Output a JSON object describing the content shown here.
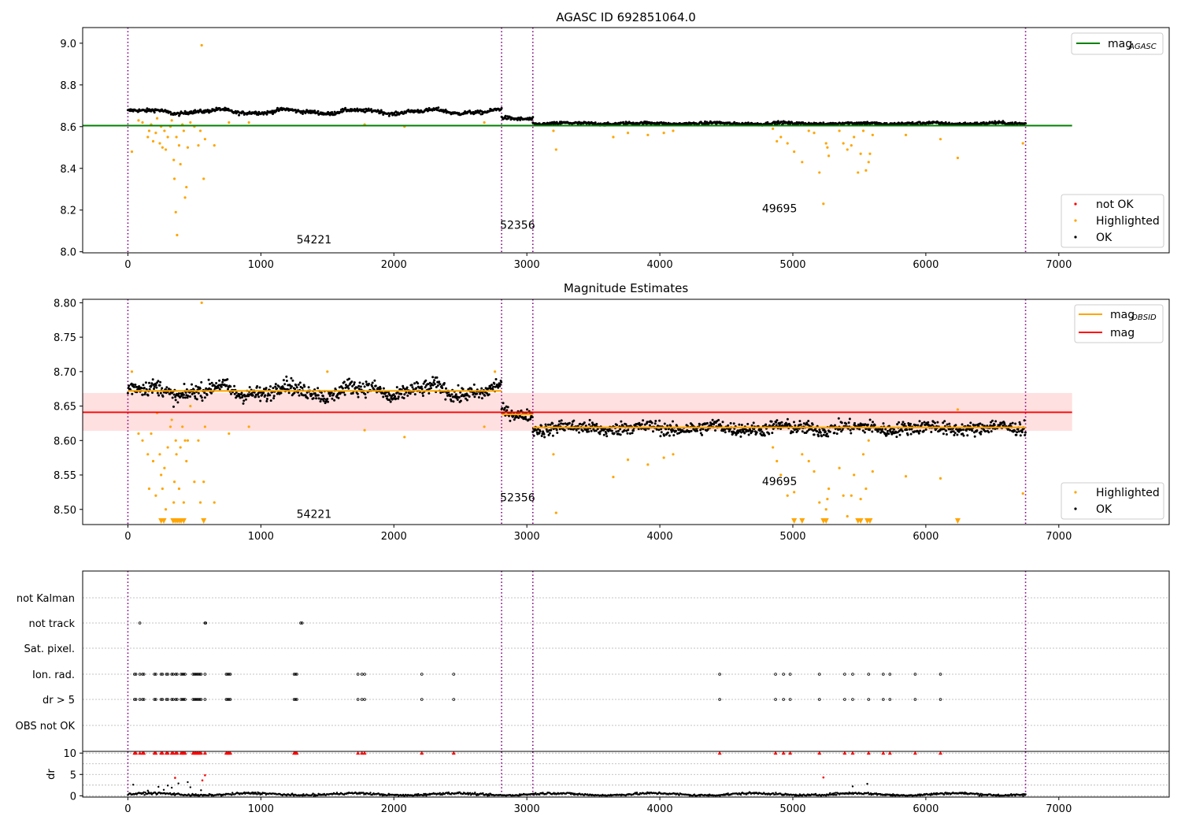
{
  "chart_data": [
    {
      "type": "scatter",
      "title": "AGASC ID 692851064.0",
      "xlim": [
        -340,
        7830
      ],
      "ylim": [
        7.995,
        9.075
      ],
      "x_ticks": [
        "0",
        "1000",
        "2000",
        "3000",
        "4000",
        "5000",
        "6000",
        "7000"
      ],
      "x_tick_values": [
        0,
        1000,
        2000,
        3000,
        4000,
        5000,
        6000,
        7000
      ],
      "y_ticks": [
        "8.0",
        "8.2",
        "8.4",
        "8.6",
        "8.8",
        "9.0"
      ],
      "y_tick_values": [
        8.0,
        8.2,
        8.4,
        8.6,
        8.8,
        9.0
      ],
      "mag_agasc": 8.605,
      "mag_agasc_xrange": [
        -340,
        7100
      ],
      "obs_boundaries": [
        0,
        2810,
        3045,
        6750
      ],
      "obs_labels": [
        {
          "text": "54221",
          "x": 1400,
          "y": 8.04
        },
        {
          "text": "52356",
          "x": 2930,
          "y": 8.11
        },
        {
          "text": "49695",
          "x": 4900,
          "y": 8.19
        }
      ],
      "segments": [
        {
          "x0": 0,
          "x1": 2810,
          "level": 8.672,
          "amp": 0.012,
          "noise": 0.006,
          "step": 5
        },
        {
          "x0": 2810,
          "x1": 3045,
          "level": 8.638,
          "amp": 0.006,
          "noise": 0.006,
          "step": 5
        },
        {
          "x0": 3045,
          "x1": 6750,
          "level": 8.615,
          "amp": 0.004,
          "noise": 0.005,
          "step": 5
        }
      ],
      "highlighted_points": [
        [
          30,
          8.48
        ],
        [
          80,
          8.63
        ],
        [
          110,
          8.62
        ],
        [
          150,
          8.55
        ],
        [
          160,
          8.58
        ],
        [
          175,
          8.61
        ],
        [
          190,
          8.53
        ],
        [
          210,
          8.57
        ],
        [
          220,
          8.64
        ],
        [
          240,
          8.52
        ],
        [
          250,
          8.6
        ],
        [
          260,
          8.5
        ],
        [
          275,
          8.58
        ],
        [
          285,
          8.49
        ],
        [
          300,
          8.55
        ],
        [
          320,
          8.6
        ],
        [
          330,
          8.63
        ],
        [
          345,
          8.44
        ],
        [
          350,
          8.35
        ],
        [
          360,
          8.19
        ],
        [
          365,
          8.55
        ],
        [
          370,
          8.08
        ],
        [
          385,
          8.51
        ],
        [
          395,
          8.42
        ],
        [
          410,
          8.61
        ],
        [
          420,
          8.58
        ],
        [
          430,
          8.26
        ],
        [
          440,
          8.31
        ],
        [
          450,
          8.5
        ],
        [
          470,
          8.62
        ],
        [
          500,
          8.6
        ],
        [
          530,
          8.51
        ],
        [
          545,
          8.58
        ],
        [
          555,
          8.99
        ],
        [
          570,
          8.35
        ],
        [
          580,
          8.54
        ],
        [
          650,
          8.51
        ],
        [
          760,
          8.62
        ],
        [
          910,
          8.62
        ],
        [
          1780,
          8.61
        ],
        [
          2080,
          8.6
        ],
        [
          2680,
          8.62
        ],
        [
          3200,
          8.58
        ],
        [
          3220,
          8.49
        ],
        [
          3650,
          8.55
        ],
        [
          3760,
          8.57
        ],
        [
          3910,
          8.56
        ],
        [
          4030,
          8.57
        ],
        [
          4100,
          8.58
        ],
        [
          4850,
          8.59
        ],
        [
          4880,
          8.53
        ],
        [
          4910,
          8.55
        ],
        [
          4960,
          8.52
        ],
        [
          5010,
          8.48
        ],
        [
          5070,
          8.43
        ],
        [
          5120,
          8.58
        ],
        [
          5160,
          8.57
        ],
        [
          5200,
          8.38
        ],
        [
          5230,
          8.23
        ],
        [
          5250,
          8.52
        ],
        [
          5260,
          8.5
        ],
        [
          5270,
          8.46
        ],
        [
          5350,
          8.58
        ],
        [
          5380,
          8.52
        ],
        [
          5410,
          8.49
        ],
        [
          5440,
          8.51
        ],
        [
          5460,
          8.55
        ],
        [
          5490,
          8.38
        ],
        [
          5510,
          8.47
        ],
        [
          5530,
          8.58
        ],
        [
          5550,
          8.39
        ],
        [
          5570,
          8.43
        ],
        [
          5580,
          8.47
        ],
        [
          5600,
          8.56
        ],
        [
          5850,
          8.56
        ],
        [
          6110,
          8.54
        ],
        [
          6240,
          8.45
        ],
        [
          6730,
          8.52
        ]
      ],
      "legend_top": [
        {
          "label": "mag",
          "sub": "AGASC",
          "color": "#008000",
          "kind": "line"
        }
      ],
      "legend_bottom": [
        {
          "label": "not OK",
          "color": "#ff0000",
          "kind": "dot"
        },
        {
          "label": "Highlighted",
          "color": "#ffa500",
          "kind": "dot"
        },
        {
          "label": "OK",
          "color": "#000000",
          "kind": "dot"
        }
      ]
    },
    {
      "type": "scatter",
      "title": "Magnitude Estimates",
      "xlim": [
        -340,
        7830
      ],
      "ylim": [
        8.478,
        8.805
      ],
      "x_ticks": [
        "0",
        "1000",
        "2000",
        "3000",
        "4000",
        "5000",
        "6000",
        "7000"
      ],
      "x_tick_values": [
        0,
        1000,
        2000,
        3000,
        4000,
        5000,
        6000,
        7000
      ],
      "y_ticks": [
        "8.50",
        "8.55",
        "8.60",
        "8.65",
        "8.70",
        "8.75",
        "8.80"
      ],
      "y_tick_values": [
        8.5,
        8.55,
        8.6,
        8.65,
        8.7,
        8.75,
        8.8
      ],
      "mag": 8.641,
      "mag_band": [
        8.614,
        8.669
      ],
      "mag_xrange": [
        -340,
        7100
      ],
      "mag_obsid": [
        {
          "x0": 0,
          "x1": 2810,
          "y": 8.672
        },
        {
          "x0": 2810,
          "x1": 3045,
          "y": 8.638
        },
        {
          "x0": 3045,
          "x1": 6750,
          "y": 8.619
        }
      ],
      "obs_boundaries": [
        0,
        2810,
        3045,
        6750
      ],
      "obs_labels": [
        {
          "text": "54221",
          "x": 1400,
          "y": 8.488
        },
        {
          "text": "52356",
          "x": 2930,
          "y": 8.512
        },
        {
          "text": "49695",
          "x": 4900,
          "y": 8.535
        }
      ],
      "segments": [
        {
          "x0": 0,
          "x1": 2810,
          "level": 8.672,
          "amp": 0.01,
          "noise": 0.008,
          "step": 4
        },
        {
          "x0": 2810,
          "x1": 3045,
          "level": 8.638,
          "amp": 0.005,
          "noise": 0.006,
          "step": 4
        },
        {
          "x0": 3045,
          "x1": 6750,
          "level": 8.618,
          "amp": 0.004,
          "noise": 0.007,
          "step": 4
        }
      ],
      "highlighted_points": [
        [
          30,
          8.7
        ],
        [
          80,
          8.61
        ],
        [
          110,
          8.6
        ],
        [
          150,
          8.58
        ],
        [
          160,
          8.53
        ],
        [
          175,
          8.61
        ],
        [
          190,
          8.57
        ],
        [
          210,
          8.52
        ],
        [
          220,
          8.64
        ],
        [
          240,
          8.58
        ],
        [
          250,
          8.55
        ],
        [
          260,
          8.53
        ],
        [
          275,
          8.56
        ],
        [
          285,
          8.5
        ],
        [
          300,
          8.59
        ],
        [
          320,
          8.62
        ],
        [
          330,
          8.63
        ],
        [
          345,
          8.51
        ],
        [
          350,
          8.54
        ],
        [
          360,
          8.6
        ],
        [
          365,
          8.58
        ],
        [
          385,
          8.53
        ],
        [
          395,
          8.59
        ],
        [
          410,
          8.62
        ],
        [
          420,
          8.51
        ],
        [
          430,
          8.6
        ],
        [
          440,
          8.57
        ],
        [
          450,
          8.6
        ],
        [
          470,
          8.65
        ],
        [
          500,
          8.54
        ],
        [
          530,
          8.6
        ],
        [
          545,
          8.51
        ],
        [
          555,
          8.8
        ],
        [
          570,
          8.54
        ],
        [
          580,
          8.62
        ],
        [
          650,
          8.51
        ],
        [
          760,
          8.61
        ],
        [
          910,
          8.62
        ],
        [
          1500,
          8.7
        ],
        [
          1780,
          8.615
        ],
        [
          2080,
          8.605
        ],
        [
          2680,
          8.62
        ],
        [
          2760,
          8.7
        ],
        [
          3200,
          8.58
        ],
        [
          3220,
          8.495
        ],
        [
          3650,
          8.547
        ],
        [
          3760,
          8.572
        ],
        [
          3910,
          8.565
        ],
        [
          4030,
          8.575
        ],
        [
          4100,
          8.58
        ],
        [
          4850,
          8.59
        ],
        [
          4880,
          8.57
        ],
        [
          4910,
          8.55
        ],
        [
          4960,
          8.52
        ],
        [
          5010,
          8.525
        ],
        [
          5070,
          8.58
        ],
        [
          5120,
          8.57
        ],
        [
          5160,
          8.555
        ],
        [
          5200,
          8.51
        ],
        [
          5250,
          8.5
        ],
        [
          5260,
          8.515
        ],
        [
          5270,
          8.53
        ],
        [
          5350,
          8.56
        ],
        [
          5380,
          8.52
        ],
        [
          5410,
          8.49
        ],
        [
          5440,
          8.52
        ],
        [
          5460,
          8.55
        ],
        [
          5510,
          8.515
        ],
        [
          5530,
          8.58
        ],
        [
          5550,
          8.53
        ],
        [
          5570,
          8.6
        ],
        [
          5600,
          8.555
        ],
        [
          5850,
          8.548
        ],
        [
          6110,
          8.545
        ],
        [
          6240,
          8.645
        ],
        [
          6730,
          8.523
        ]
      ],
      "below_range_markers": [
        250,
        270,
        340,
        355,
        370,
        385,
        400,
        420,
        570,
        5010,
        5070,
        5230,
        5250,
        5490,
        5510,
        5560,
        5580,
        6240
      ],
      "legend_top": [
        {
          "label": "mag",
          "sub": "OBSID",
          "color": "#ffa500",
          "kind": "line"
        },
        {
          "label": "mag",
          "sub": "",
          "color": "#ff0000",
          "kind": "line"
        }
      ],
      "legend_bottom": [
        {
          "label": "Highlighted",
          "color": "#ffa500",
          "kind": "dot"
        },
        {
          "label": "OK",
          "color": "#000000",
          "kind": "dot"
        }
      ]
    },
    {
      "type": "scatter",
      "title": "",
      "xlim": [
        -340,
        7830
      ],
      "categories": [
        "not Kalman",
        "not track",
        "Sat. pixel.",
        "Ion. rad.",
        "dr > 5",
        "OBS not OK"
      ],
      "flag_points": {
        "not track": [
          90,
          580,
          585,
          1300,
          1310
        ],
        "Ion. rad.": [
          50,
          60,
          90,
          110,
          120,
          200,
          210,
          250,
          260,
          290,
          300,
          330,
          340,
          360,
          370,
          400,
          410,
          420,
          430,
          490,
          500,
          510,
          520,
          530,
          540,
          550,
          580,
          740,
          750,
          760,
          770,
          1250,
          1260,
          1270,
          1730,
          1760,
          1780,
          2210,
          2450,
          4450,
          4870,
          4930,
          4980,
          5200,
          5390,
          5450,
          5570,
          5680,
          5730,
          5920,
          6110
        ],
        "dr > 5": [
          50,
          60,
          90,
          110,
          120,
          200,
          210,
          250,
          260,
          290,
          300,
          330,
          340,
          360,
          370,
          400,
          410,
          420,
          430,
          490,
          500,
          510,
          520,
          530,
          540,
          550,
          580,
          740,
          750,
          760,
          770,
          1250,
          1260,
          1270,
          1730,
          1760,
          1780,
          2210,
          2450,
          4450,
          4870,
          4930,
          4980,
          5200,
          5390,
          5450,
          5570,
          5680,
          5730,
          5920,
          6110
        ]
      },
      "obs_boundaries": [
        0,
        2810,
        3045,
        6750
      ]
    },
    {
      "type": "scatter",
      "title": "",
      "ylabel": "dr",
      "xlim": [
        -340,
        7830
      ],
      "ylim": [
        -0.3,
        10.4
      ],
      "x_ticks": [
        "0",
        "1000",
        "2000",
        "3000",
        "4000",
        "5000",
        "6000",
        "7000"
      ],
      "x_tick_values": [
        0,
        1000,
        2000,
        3000,
        4000,
        5000,
        6000,
        7000
      ],
      "y_ticks": [
        "0",
        "5",
        "10"
      ],
      "y_tick_values": [
        0,
        5,
        10
      ],
      "dr_clipped": [
        50,
        60,
        90,
        110,
        120,
        200,
        210,
        250,
        260,
        290,
        300,
        330,
        340,
        360,
        370,
        400,
        410,
        420,
        430,
        490,
        500,
        510,
        520,
        530,
        540,
        550,
        580,
        740,
        750,
        760,
        770,
        1250,
        1260,
        1270,
        1730,
        1760,
        1780,
        2210,
        2450,
        4450,
        4870,
        4930,
        4980,
        5200,
        5390,
        5450,
        5570,
        5680,
        5730,
        5920,
        6110
      ],
      "dr_red_points": [
        [
          355,
          4.2
        ],
        [
          560,
          3.6
        ],
        [
          580,
          4.8
        ],
        [
          5230,
          4.3
        ]
      ],
      "dr_black_outliers": [
        [
          40,
          2.6
        ],
        [
          150,
          1.2
        ],
        [
          230,
          2.1
        ],
        [
          270,
          1.4
        ],
        [
          300,
          2.4
        ],
        [
          330,
          1.9
        ],
        [
          380,
          2.9
        ],
        [
          450,
          3.2
        ],
        [
          470,
          2.0
        ],
        [
          550,
          1.3
        ],
        [
          5450,
          2.2
        ],
        [
          5560,
          2.8
        ]
      ],
      "obs_boundaries": [
        0,
        2810,
        3045,
        6750
      ]
    }
  ]
}
